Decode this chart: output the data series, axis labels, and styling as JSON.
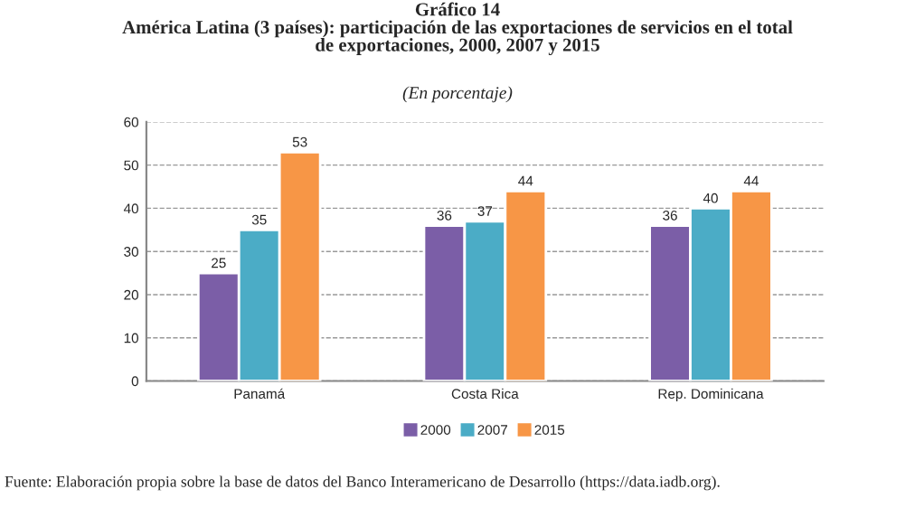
{
  "chart_data": {
    "type": "bar",
    "title": "Gráfico 14\nAmérica Latina (3 países): participación de las exportaciones de servicios en el total\nde exportaciones, 2000, 2007 y 2015",
    "subtitle": "(En porcentaje)",
    "categories": [
      "Panamá",
      "Costa Rica",
      "Rep. Dominicana"
    ],
    "series": [
      {
        "name": "2000",
        "color": "#7b5ea7",
        "values": [
          25,
          36,
          36
        ]
      },
      {
        "name": "2007",
        "color": "#4bacc6",
        "values": [
          35,
          37,
          40
        ]
      },
      {
        "name": "2015",
        "color": "#f79646",
        "values": [
          53,
          44,
          44
        ]
      }
    ],
    "ylim": [
      0,
      60
    ],
    "yticks": [
      0,
      10,
      20,
      30,
      40,
      50,
      60
    ],
    "grid": "y",
    "legend": "bottom",
    "data_labels": true,
    "annotations": [
      "Fuente: Elaboración propia sobre la base de datos del Banco Interamericano de Desarrollo (https://data.iadb.org)."
    ]
  }
}
